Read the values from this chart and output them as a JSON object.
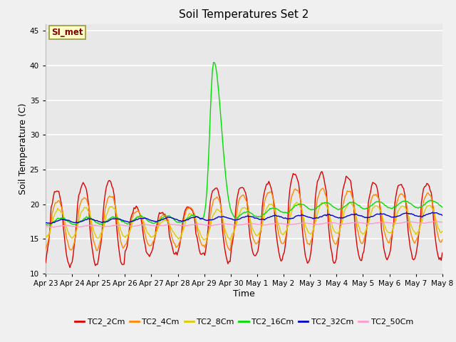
{
  "title": "Soil Temperatures Set 2",
  "xlabel": "Time",
  "ylabel": "Soil Temperature (C)",
  "ylim": [
    10,
    46
  ],
  "yticks": [
    10,
    15,
    20,
    25,
    30,
    35,
    40,
    45
  ],
  "xtick_labels": [
    "Apr 23",
    "Apr 24",
    "Apr 25",
    "Apr 26",
    "Apr 27",
    "Apr 28",
    "Apr 29",
    "Apr 30",
    "May 1",
    "May 2",
    "May 3",
    "May 4",
    "May 5",
    "May 6",
    "May 7",
    "May 8"
  ],
  "series_names": [
    "TC2_2Cm",
    "TC2_4Cm",
    "TC2_8Cm",
    "TC2_16Cm",
    "TC2_32Cm",
    "TC2_50Cm"
  ],
  "series_colors": [
    "#dd0000",
    "#ff8800",
    "#ddcc00",
    "#00dd00",
    "#0000cc",
    "#ff99cc"
  ],
  "annotation_text": "SI_met",
  "annotation_color": "#880000",
  "annotation_bg": "#ffffcc",
  "annotation_border": "#999933",
  "plot_bg": "#e8e8e8",
  "fig_bg": "#f0f0f0",
  "grid_color": "#ffffff",
  "title_fontsize": 11,
  "axis_fontsize": 9,
  "tick_fontsize": 7.5,
  "legend_fontsize": 8
}
